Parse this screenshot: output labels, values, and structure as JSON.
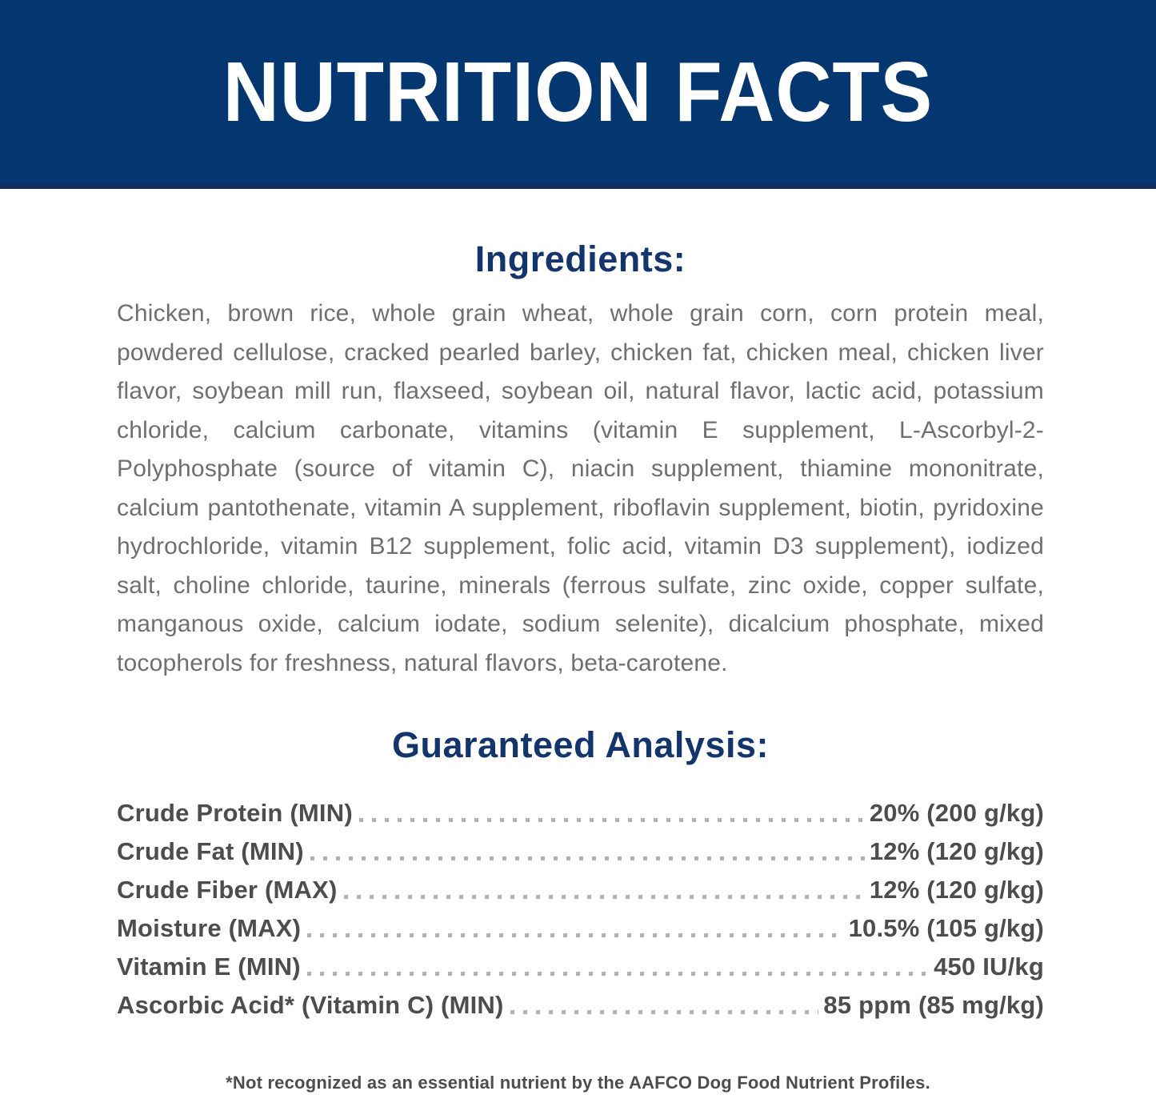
{
  "banner": {
    "title": "NUTRITION FACTS"
  },
  "ingredients": {
    "heading": "Ingredients:",
    "text": "Chicken, brown rice, whole grain wheat, whole grain corn, corn protein meal, powdered cellulose, cracked pearled barley, chicken fat, chicken meal, chicken liver flavor, soybean mill run, flaxseed, soybean oil, natural flavor, lactic acid, potassium chloride, calcium carbonate, vitamins (vitamin E supplement, L-Ascorbyl-2-Polyphosphate (source of vitamin C), niacin supplement, thiamine mononitrate, calcium pantothenate, vitamin A supplement, riboflavin supplement, biotin, pyridoxine hydrochloride, vitamin B12 supplement, folic acid, vitamin D3 supplement), iodized salt, choline chloride, taurine, minerals (ferrous sulfate, zinc oxide, copper sulfate, manganous oxide, calcium iodate, sodium selenite), dicalcium phosphate, mixed tocopherols for freshness, natural flavors, beta-carotene."
  },
  "guaranteed_analysis": {
    "heading": "Guaranteed Analysis:",
    "rows": [
      {
        "label": "Crude Protein (MIN)",
        "value": "20% (200 g/kg)"
      },
      {
        "label": "Crude Fat (MIN)",
        "value": "12% (120 g/kg)"
      },
      {
        "label": "Crude Fiber (MAX)",
        "value": "12% (120 g/kg)"
      },
      {
        "label": "Moisture (MAX)",
        "value": "10.5% (105 g/kg)"
      },
      {
        "label": "Vitamin E (MIN)",
        "value": "450 IU/kg"
      },
      {
        "label": "Ascorbic Acid* (Vitamin C) (MIN)",
        "value": "85 ppm (85 mg/kg)"
      }
    ]
  },
  "footnote": "*Not recognized as an essential nutrient by the AAFCO Dog Food Nutrient Profiles.",
  "colors": {
    "banner_bg": "#04376F",
    "banner_border": "#16295B",
    "heading_navy": "#14356C",
    "body_gray": "#6F6F6F",
    "analysis_gray": "#4D4D4D",
    "dot_gray": "#B2B2B2"
  }
}
